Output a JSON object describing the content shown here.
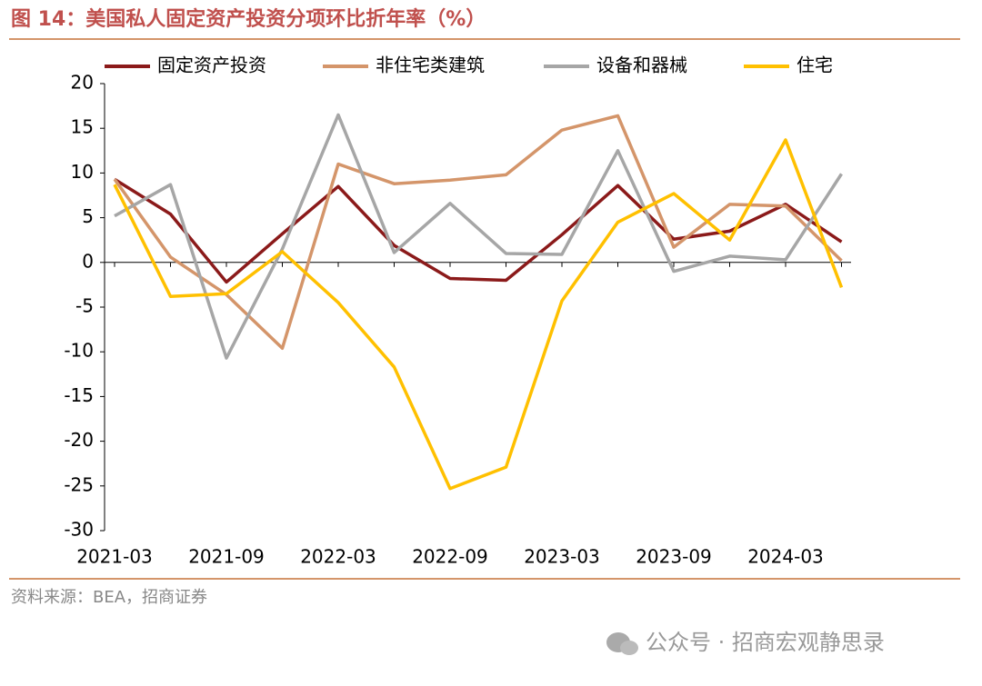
{
  "chart_data": {
    "type": "line",
    "title": "图 14：美国私人固定资产投资分项环比折年率（%）",
    "source": "资料来源：BEA，招商证券",
    "watermark": "公众号 · 招商宏观静思录",
    "categories": [
      "2021-03",
      null,
      "2021-09",
      null,
      "2022-03",
      null,
      "2022-09",
      null,
      "2023-03",
      null,
      "2023-09",
      null,
      "2024-03",
      null
    ],
    "ylim": [
      -30,
      20
    ],
    "yticks": [
      20,
      15,
      10,
      5,
      0,
      -5,
      -10,
      -15,
      -20,
      -25,
      -30
    ],
    "legend": "top",
    "series": [
      {
        "name": "固定资产投资",
        "color": "#8b1a1a",
        "values": [
          9.3,
          5.4,
          -2.2,
          3.2,
          8.5,
          1.9,
          -1.8,
          -2.0,
          3.1,
          8.6,
          2.6,
          3.5,
          6.5,
          2.3
        ]
      },
      {
        "name": "非住宅类建筑",
        "color": "#d4956a",
        "values": [
          9.3,
          0.6,
          -3.6,
          -9.6,
          11.0,
          8.8,
          9.2,
          9.8,
          14.8,
          16.4,
          1.7,
          6.5,
          6.3,
          0.2
        ]
      },
      {
        "name": "设备和器械",
        "color": "#a6a6a6",
        "values": [
          5.2,
          8.7,
          -10.7,
          1.5,
          16.5,
          1.1,
          6.6,
          1.0,
          0.9,
          12.5,
          -1.0,
          0.7,
          0.3,
          9.9
        ]
      },
      {
        "name": "住宅",
        "color": "#ffc000",
        "values": [
          8.7,
          -3.8,
          -3.5,
          1.2,
          -4.5,
          -11.7,
          -25.3,
          -22.9,
          -4.3,
          4.5,
          7.7,
          2.5,
          13.7,
          -2.8
        ]
      }
    ]
  }
}
